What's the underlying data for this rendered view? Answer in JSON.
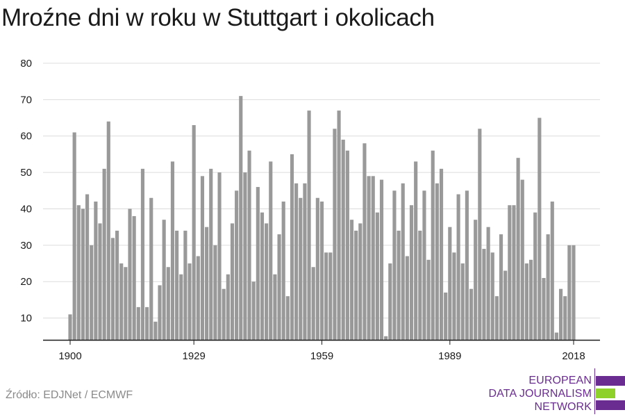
{
  "title": "Mroźne dni w roku w Stuttgart i okolicach",
  "source": "Źródło: EDJNet / ECMWF",
  "logo": {
    "lines": [
      "EUROPEAN",
      "DATA JOURNALISM",
      "NETWORK"
    ],
    "colors": {
      "purple": "#6a2c91",
      "green": "#8fd12b"
    }
  },
  "chart_data": {
    "type": "bar",
    "x_start": 1900,
    "x_end": 2018,
    "x_ticks": [
      1900,
      1929,
      1959,
      1989,
      2018
    ],
    "y_ticks": [
      10,
      20,
      30,
      40,
      50,
      60,
      70,
      80
    ],
    "ylim": [
      4,
      80
    ],
    "grid": true,
    "bar_color": "#999999",
    "values": [
      11,
      61,
      41,
      40,
      44,
      30,
      42,
      36,
      51,
      64,
      32,
      34,
      25,
      24,
      40,
      38,
      13,
      51,
      13,
      43,
      9,
      19,
      37,
      24,
      53,
      34,
      22,
      34,
      25,
      63,
      27,
      49,
      35,
      51,
      30,
      50,
      18,
      22,
      36,
      45,
      71,
      50,
      56,
      20,
      46,
      39,
      36,
      53,
      22,
      33,
      42,
      16,
      55,
      47,
      43,
      47,
      67,
      24,
      43,
      42,
      28,
      28,
      62,
      67,
      59,
      56,
      37,
      34,
      36,
      58,
      49,
      49,
      39,
      48,
      5,
      25,
      45,
      34,
      47,
      27,
      41,
      53,
      34,
      45,
      26,
      56,
      47,
      51,
      17,
      35,
      28,
      44,
      25,
      45,
      18,
      37,
      62,
      29,
      35,
      28,
      16,
      33,
      23,
      41,
      41,
      54,
      48,
      25,
      26,
      39,
      65,
      21,
      33,
      42,
      6,
      18,
      16,
      30,
      30
    ]
  }
}
